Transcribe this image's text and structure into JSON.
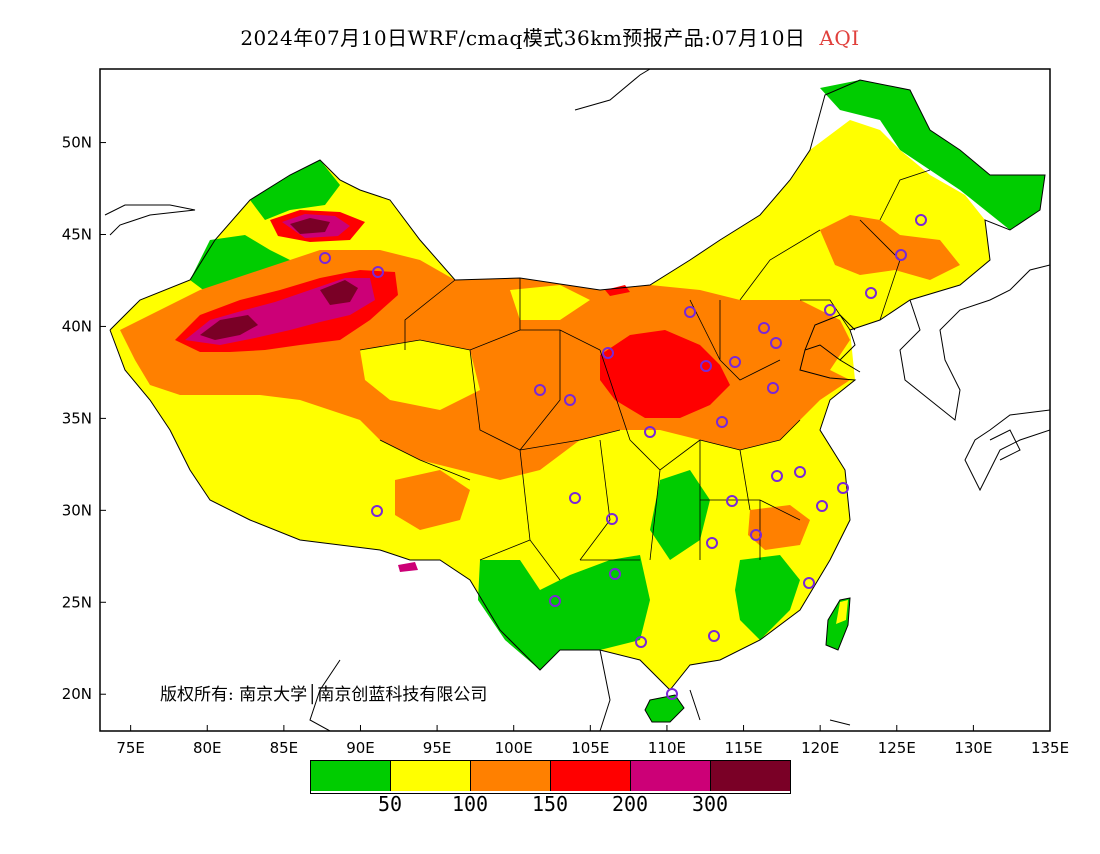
{
  "title": {
    "main": "2024年07月10日WRF/cmaq模式36km预报产品:07月10日",
    "variable": "AQI"
  },
  "map": {
    "lon_range": [
      73,
      135
    ],
    "lat_range": [
      18,
      54
    ],
    "x_ticks": [
      "75E",
      "80E",
      "85E",
      "90E",
      "95E",
      "100E",
      "105E",
      "110E",
      "115E",
      "120E",
      "125E",
      "130E",
      "135E"
    ],
    "y_ticks": [
      "20N",
      "25N",
      "30N",
      "35N",
      "40N",
      "45N",
      "50N"
    ],
    "copyright": "版权所有: 南京大学│南京创蓝科技有限公司"
  },
  "legend": {
    "colors": [
      "#00cc00",
      "#ffff00",
      "#ff8000",
      "#ff0000",
      "#cc0077",
      "#7a0026"
    ],
    "labels": [
      "50",
      "100",
      "150",
      "200",
      "300"
    ]
  },
  "colors": {
    "green": "#00cc00",
    "yellow": "#ffff00",
    "orange": "#ff8000",
    "red": "#ff0000",
    "magenta": "#cc0077",
    "maroon": "#7a0026",
    "station": "#7a28d6",
    "title_accent": "#e0403c"
  }
}
